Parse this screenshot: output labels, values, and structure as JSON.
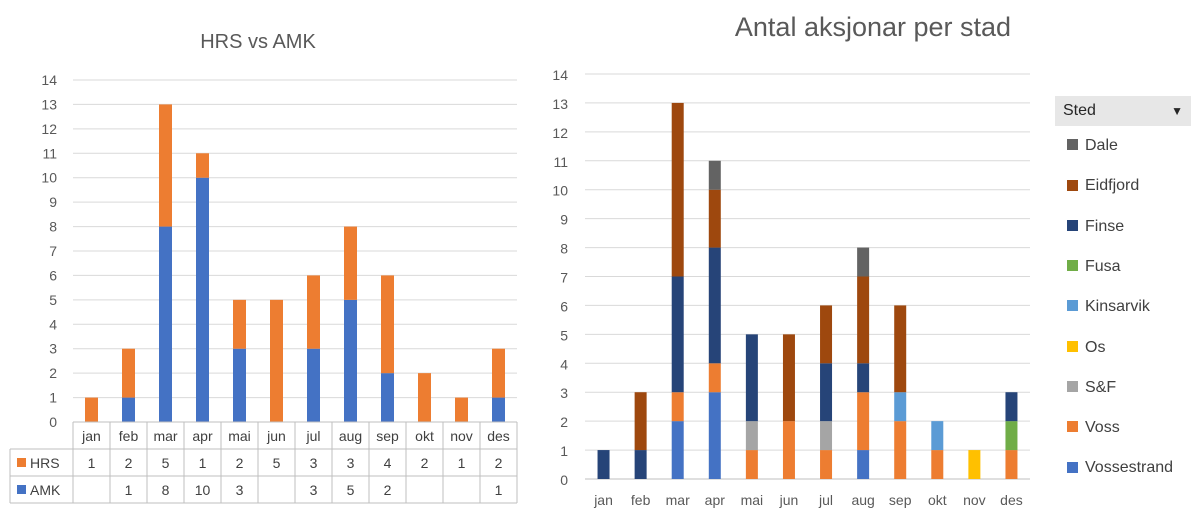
{
  "chart_data": [
    {
      "type": "bar",
      "stacked": true,
      "title": "HRS vs AMK",
      "categories": [
        "jan",
        "feb",
        "mar",
        "apr",
        "mai",
        "jun",
        "jul",
        "aug",
        "sep",
        "okt",
        "nov",
        "des"
      ],
      "ylim": [
        0,
        14
      ],
      "yticks": [
        0,
        1,
        2,
        3,
        4,
        5,
        6,
        7,
        8,
        9,
        10,
        11,
        12,
        13,
        14
      ],
      "grid": true,
      "legend": "data-table",
      "series": [
        {
          "name": "AMK",
          "color": "#4472c4",
          "values": [
            0,
            1,
            8,
            10,
            3,
            0,
            3,
            5,
            2,
            0,
            0,
            1
          ],
          "table_values": [
            "",
            "1",
            "8",
            "10",
            "3",
            "",
            "3",
            "5",
            "2",
            "",
            "",
            "1"
          ]
        },
        {
          "name": "HRS",
          "color": "#ed7d31",
          "values": [
            1,
            2,
            5,
            1,
            2,
            5,
            3,
            3,
            4,
            2,
            1,
            2
          ],
          "table_values": [
            "1",
            "2",
            "5",
            "1",
            "2",
            "5",
            "3",
            "3",
            "4",
            "2",
            "1",
            "2"
          ]
        }
      ]
    },
    {
      "type": "bar",
      "stacked": true,
      "title": "Antal aksjonar per stad",
      "categories": [
        "jan",
        "feb",
        "mar",
        "apr",
        "mai",
        "jun",
        "jul",
        "aug",
        "sep",
        "okt",
        "nov",
        "des"
      ],
      "ylim": [
        0,
        14
      ],
      "yticks": [
        0,
        1,
        2,
        3,
        4,
        5,
        6,
        7,
        8,
        9,
        10,
        11,
        12,
        13,
        14
      ],
      "grid": true,
      "legend": "right",
      "legend_header": "Sted",
      "series": [
        {
          "name": "Vossestrand",
          "color": "#4472c4",
          "values": [
            0,
            0,
            2,
            3,
            0,
            0,
            0,
            1,
            0,
            0,
            0,
            0
          ]
        },
        {
          "name": "Voss",
          "color": "#ed7d31",
          "values": [
            0,
            0,
            1,
            1,
            1,
            2,
            1,
            2,
            2,
            1,
            0,
            1
          ]
        },
        {
          "name": "S&F",
          "color": "#a5a5a5",
          "values": [
            0,
            0,
            0,
            0,
            1,
            0,
            1,
            0,
            0,
            0,
            0,
            0
          ]
        },
        {
          "name": "Os",
          "color": "#ffc000",
          "values": [
            0,
            0,
            0,
            0,
            0,
            0,
            0,
            0,
            0,
            0,
            1,
            0
          ]
        },
        {
          "name": "Kinsarvik",
          "color": "#5b9bd5",
          "values": [
            0,
            0,
            0,
            0,
            0,
            0,
            0,
            0,
            1,
            1,
            0,
            0
          ]
        },
        {
          "name": "Fusa",
          "color": "#70ad47",
          "values": [
            0,
            0,
            0,
            0,
            0,
            0,
            0,
            0,
            0,
            0,
            0,
            1
          ]
        },
        {
          "name": "Finse",
          "color": "#264478",
          "values": [
            1,
            1,
            4,
            4,
            3,
            0,
            2,
            1,
            0,
            0,
            0,
            1
          ]
        },
        {
          "name": "Eidfjord",
          "color": "#9e480e",
          "values": [
            0,
            2,
            6,
            2,
            0,
            3,
            2,
            3,
            3,
            0,
            0,
            0
          ]
        },
        {
          "name": "Dale",
          "color": "#636363",
          "values": [
            0,
            0,
            0,
            1,
            0,
            0,
            0,
            1,
            0,
            0,
            0,
            0
          ]
        }
      ],
      "legend_order": [
        "Dale",
        "Eidfjord",
        "Finse",
        "Fusa",
        "Kinsarvik",
        "Os",
        "S&F",
        "Voss",
        "Vossestrand"
      ]
    }
  ]
}
